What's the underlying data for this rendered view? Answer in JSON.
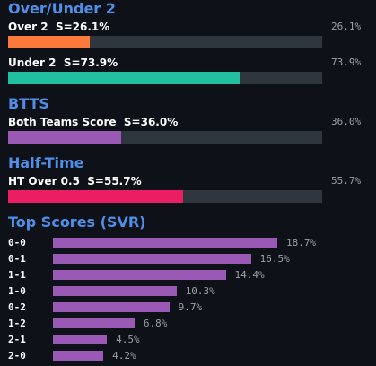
{
  "sections": [
    {
      "title": "Over/Under 2",
      "items": [
        {
          "label": "Over 2  S=26.1%",
          "value": 26.1,
          "value_label": "26.1%",
          "color": "#ff7b3b"
        },
        {
          "label": "Under 2  S=73.9%",
          "value": 73.9,
          "value_label": "73.9%",
          "color": "#1fbf9f"
        }
      ]
    },
    {
      "title": "BTTS",
      "items": [
        {
          "label": "Both Teams Score  S=36.0%",
          "value": 36.0,
          "value_label": "36.0%",
          "color": "#9b59b6"
        }
      ]
    },
    {
      "title": "Half-Time",
      "items": [
        {
          "label": "HT Over 0.5  S=55.7%",
          "value": 55.7,
          "value_label": "55.7%",
          "color": "#e91e63"
        }
      ]
    }
  ],
  "top_scores": {
    "title": "Top Scores (SVR)",
    "color": "#9b59b6",
    "rows": [
      {
        "score": "0-0",
        "value": 18.7,
        "value_label": "18.7%"
      },
      {
        "score": "0-1",
        "value": 16.5,
        "value_label": "16.5%"
      },
      {
        "score": "1-1",
        "value": 14.4,
        "value_label": "14.4%"
      },
      {
        "score": "1-0",
        "value": 10.3,
        "value_label": "10.3%"
      },
      {
        "score": "0-2",
        "value": 9.7,
        "value_label": "9.7%"
      },
      {
        "score": "1-2",
        "value": 6.8,
        "value_label": "6.8%"
      },
      {
        "score": "2-1",
        "value": 4.5,
        "value_label": "4.5%"
      },
      {
        "score": "2-0",
        "value": 4.2,
        "value_label": "4.2%"
      }
    ]
  }
}
